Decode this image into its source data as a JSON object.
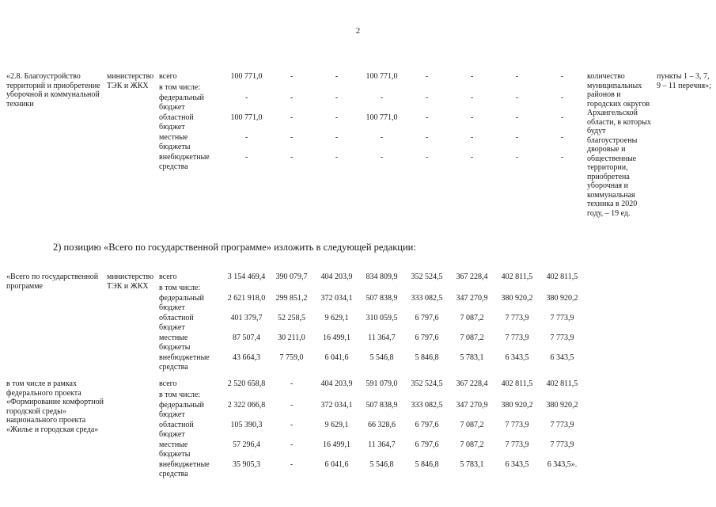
{
  "page_number": "2",
  "section_note": "2) позицию «Всего по государственной программе» изложить в следующей редакции:",
  "blocks": [
    {
      "name": "«2.8. Благоустройство территорий и приобретение уборочной и коммунальной техники",
      "ministry": "министерство ТЭК и ЖКХ",
      "indicator": "количество муниципальных районов и городских округов Архангельской области, в которых будут благоустроены дворовые и общественные территории, приобретена уборочная и коммунальная техника в 2020 году, – 19 ед.",
      "items": "пункты 1 – 3, 7, 9 – 11 перечня»;",
      "rows": [
        {
          "label": "всего",
          "values": [
            "100 771,0",
            "-",
            "-",
            "100 771,0",
            "-",
            "-",
            "-",
            "-"
          ]
        },
        {
          "label": "в том числе:",
          "values": []
        },
        {
          "label": "федеральный бюджет",
          "values": [
            "-",
            "-",
            "-",
            "-",
            "-",
            "-",
            "-",
            "-"
          ]
        },
        {
          "label": "областной бюджет",
          "values": [
            "100 771,0",
            "-",
            "-",
            "100 771,0",
            "-",
            "-",
            "-",
            "-"
          ]
        },
        {
          "label": "местные бюджеты",
          "values": [
            "-",
            "-",
            "-",
            "-",
            "-",
            "-",
            "-",
            "-"
          ]
        },
        {
          "label": "внебюджетные средства",
          "values": [
            "-",
            "-",
            "-",
            "-",
            "-",
            "-",
            "-",
            "-"
          ]
        }
      ]
    },
    {
      "name": "«Всего по государственной программе",
      "ministry": "министерство ТЭК и ЖКХ",
      "indicator": "",
      "items": "",
      "rows": [
        {
          "label": "всего",
          "values": [
            "3 154 469,4",
            "390 079,7",
            "404 203,9",
            "834 809,9",
            "352 524,5",
            "367 228,4",
            "402 811,5",
            "402 811,5"
          ]
        },
        {
          "label": "в том числе:",
          "values": []
        },
        {
          "label": "федеральный бюджет",
          "values": [
            "2 621 918,0",
            "299 851,2",
            "372 034,1",
            "507 838,9",
            "333 082,5",
            "347 270,9",
            "380 920,2",
            "380 920,2"
          ]
        },
        {
          "label": "областной бюджет",
          "values": [
            "401 379,7",
            "52 258,5",
            "9 629,1",
            "310 059,5",
            "6 797,6",
            "7 087,2",
            "7 773,9",
            "7 773,9"
          ]
        },
        {
          "label": "местные бюджеты",
          "values": [
            "87 507,4",
            "30 211,0",
            "16 499,1",
            "11 364,7",
            "6 797,6",
            "7 087,2",
            "7 773,9",
            "7 773,9"
          ]
        },
        {
          "label": "внебюджетные средства",
          "values": [
            "43 664,3",
            "7 759,0",
            "6 041,6",
            "5 546,8",
            "5 846,8",
            "5 783,1",
            "6 343,5",
            "6 343,5"
          ]
        }
      ]
    },
    {
      "name": "в том числе в рамках федерального проекта «Формирование комфортной городской среды» национального проекта «Жилье и городская среда»",
      "ministry": "",
      "indicator": "",
      "items": "",
      "rows": [
        {
          "label": "всего",
          "values": [
            "2 520 658,8",
            "-",
            "404 203,9",
            "591 079,0",
            "352 524,5",
            "367 228,4",
            "402 811,5",
            "402 811,5"
          ]
        },
        {
          "label": "в том числе:",
          "values": []
        },
        {
          "label": "федеральный бюджет",
          "values": [
            "2 322 066,8",
            "-",
            "372 034,1",
            "507 838,9",
            "333 082,5",
            "347 270,9",
            "380 920,2",
            "380 920,2"
          ]
        },
        {
          "label": "областной бюджет",
          "values": [
            "105 390,3",
            "-",
            "9 629,1",
            "66 328,6",
            "6 797,6",
            "7 087,2",
            "7 773,9",
            "7 773,9"
          ]
        },
        {
          "label": "местные бюджеты",
          "values": [
            "57 296,4",
            "-",
            "16 499,1",
            "11 364,7",
            "6 797,6",
            "7 087,2",
            "7 773,9",
            "7 773,9"
          ]
        },
        {
          "label": "внебюджетные средства",
          "values": [
            "35 905,3",
            "-",
            "6 041,6",
            "5 546,8",
            "5 846,8",
            "5 783,1",
            "6 343,5",
            "6 343,5»."
          ]
        }
      ]
    }
  ]
}
